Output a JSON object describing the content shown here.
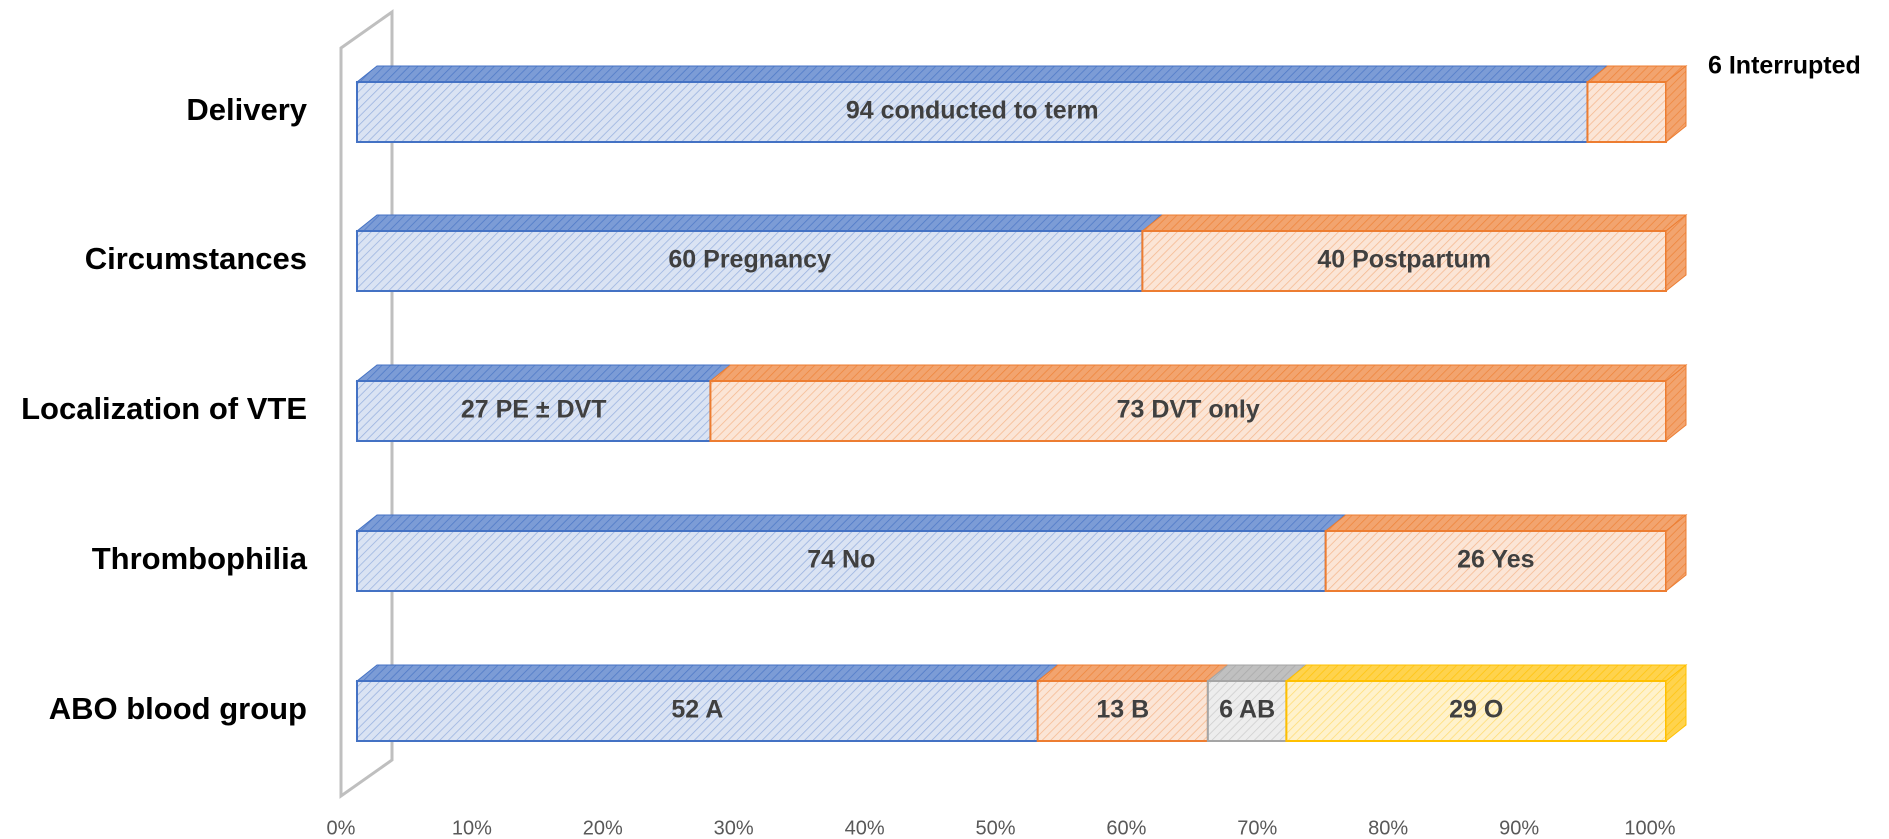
{
  "chart_data": {
    "type": "bar",
    "orientation": "horizontal",
    "stacked": true,
    "categories": [
      "Delivery",
      "Circumstances",
      "Localization of VTE",
      "Thrombophilia",
      "ABO blood group"
    ],
    "series": [
      {
        "color": "#4472c4",
        "values": [
          94,
          60,
          27,
          74,
          52
        ],
        "value_labels": [
          "94 conducted to term",
          "60 Pregnancy",
          "27 PE ± DVT",
          "74 No",
          "52 A"
        ]
      },
      {
        "color": "#ed7d31",
        "values": [
          6,
          40,
          73,
          26,
          13
        ],
        "value_labels": [
          "6 Interrupted",
          "40 Postpartum",
          "73 DVT only",
          "26 Yes",
          "13 B"
        ]
      },
      {
        "color": "#a5a5a5",
        "values": [
          null,
          null,
          null,
          null,
          6
        ],
        "value_labels": [
          null,
          null,
          null,
          null,
          "6 AB"
        ]
      },
      {
        "color": "#ffc000",
        "values": [
          null,
          null,
          null,
          null,
          29
        ],
        "value_labels": [
          null,
          null,
          null,
          null,
          "29 O"
        ]
      }
    ],
    "xlim": [
      0,
      100
    ],
    "xticks": [
      {
        "value": 0,
        "label": "0%"
      },
      {
        "value": 10,
        "label": "10%"
      },
      {
        "value": 20,
        "label": "20%"
      },
      {
        "value": 30,
        "label": "30%"
      },
      {
        "value": 40,
        "label": "40%"
      },
      {
        "value": 50,
        "label": "50%"
      },
      {
        "value": 60,
        "label": "60%"
      },
      {
        "value": 70,
        "label": "70%"
      },
      {
        "value": 80,
        "label": "80%"
      },
      {
        "value": 90,
        "label": "90%"
      },
      {
        "value": 100,
        "label": "100%"
      }
    ],
    "grid": false
  }
}
